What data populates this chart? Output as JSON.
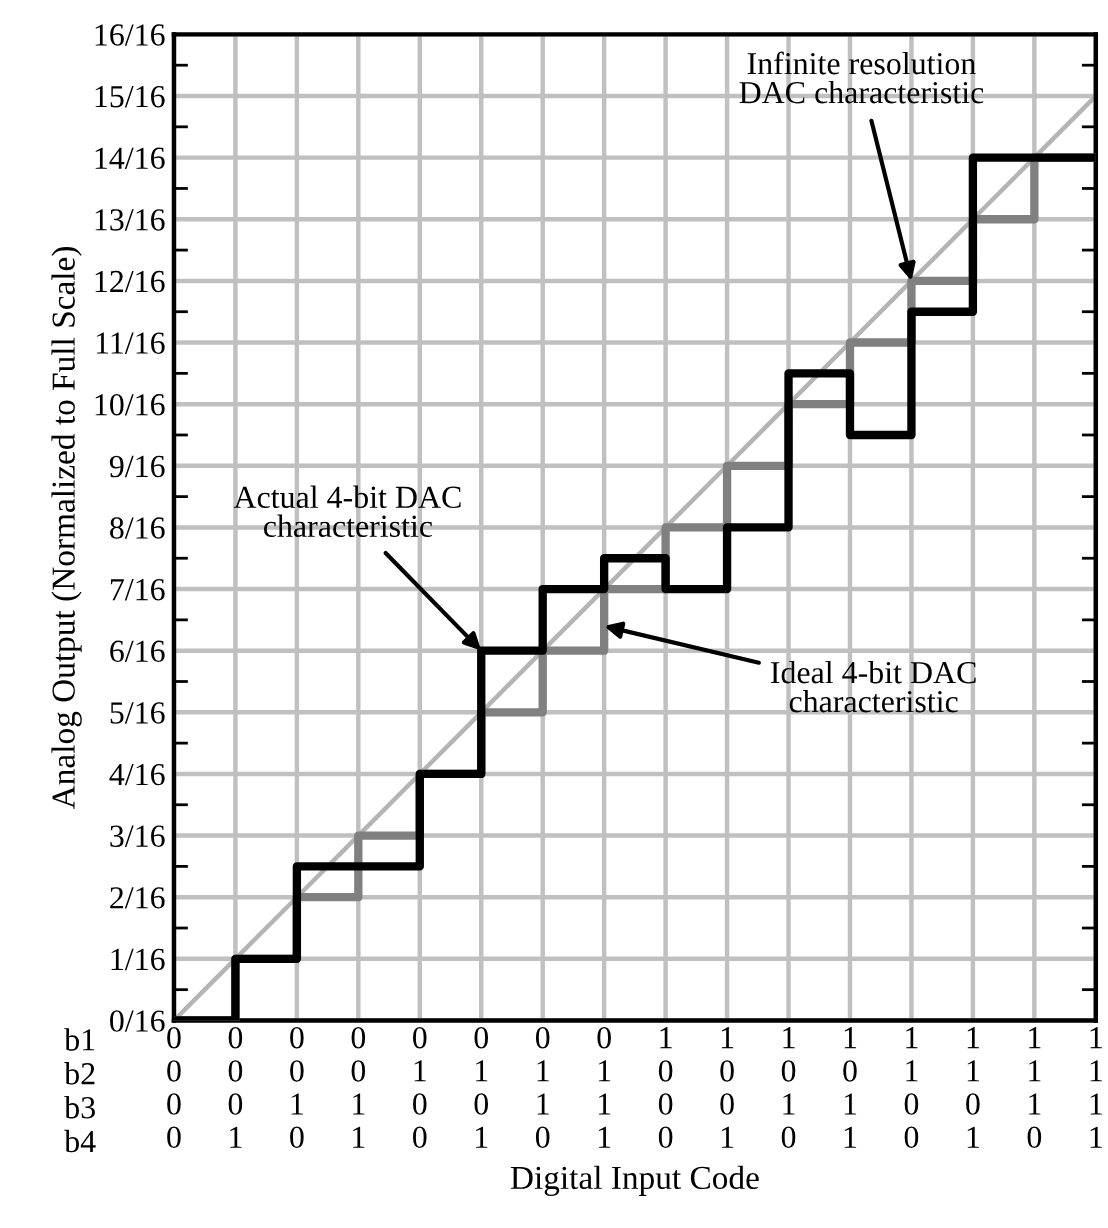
{
  "chart_data": {
    "type": "step",
    "xlabel": "Digital Input Code",
    "ylabel": "Analog Output (Normalized to Full Scale)",
    "categories": [
      "0\n0\n0\n0",
      "0\n0\n0\n1",
      "0\n0\n1\n0",
      "0\n0\n1\n1",
      "0\n1\n0\n0",
      "0\n1\n0\n1",
      "0\n1\n1\n0",
      "0\n1\n1\n1",
      "1\n0\n0\n0",
      "1\n0\n0\n1",
      "1\n0\n1\n0",
      "1\n0\n1\n1",
      "1\n1\n0\n0",
      "1\n1\n0\n1",
      "1\n1\n1\n0",
      "1\n1\n1\n1"
    ],
    "series": [
      {
        "type": "line",
        "color": "#b4b4b4",
        "values": [
          0,
          0.0625,
          0.125,
          0.1875,
          0.25,
          0.3125,
          0.375,
          0.4375,
          0.5,
          0.5625,
          0.625,
          0.6875,
          0.75,
          0.8125,
          0.875,
          0.9375
        ]
      },
      {
        "color": "#808080",
        "values": [
          0,
          0.0625,
          0.125,
          0.1875,
          0.25,
          0.3125,
          0.375,
          0.4375,
          0.5,
          0.5625,
          0.625,
          0.6875,
          0.75,
          0.8125,
          0.875,
          0.875
        ]
      },
      {
        "color": "#000000",
        "values": [
          0,
          0.0625,
          0.15625,
          0.15625,
          0.25,
          0.375,
          0.4375,
          0.46875,
          0.4375,
          0.5,
          0.65625,
          0.59375,
          0.71875,
          0.875,
          0.875,
          0.875
        ]
      }
    ],
    "ylim": [
      0,
      1
    ],
    "yticks": [
      {
        "value": 0,
        "label": "0/16"
      },
      {
        "value": 0.03125,
        "label": null
      },
      {
        "value": 0.0625,
        "label": "1/16"
      },
      {
        "value": 0.09375,
        "label": null
      },
      {
        "value": 0.125,
        "label": "2/16"
      },
      {
        "value": 0.15625,
        "label": null
      },
      {
        "value": 0.1875,
        "label": "3/16"
      },
      {
        "value": 0.21875,
        "label": null
      },
      {
        "value": 0.25,
        "label": "4/16"
      },
      {
        "value": 0.28125,
        "label": null
      },
      {
        "value": 0.3125,
        "label": "5/16"
      },
      {
        "value": 0.34375,
        "label": null
      },
      {
        "value": 0.375,
        "label": "6/16"
      },
      {
        "value": 0.40625,
        "label": null
      },
      {
        "value": 0.4375,
        "label": "7/16"
      },
      {
        "value": 0.46875,
        "label": null
      },
      {
        "value": 0.5,
        "label": "8/16"
      },
      {
        "value": 0.53125,
        "label": null
      },
      {
        "value": 0.5625,
        "label": "9/16"
      },
      {
        "value": 0.59375,
        "label": null
      },
      {
        "value": 0.625,
        "label": "10/16"
      },
      {
        "value": 0.65625,
        "label": null
      },
      {
        "value": 0.6875,
        "label": "11/16"
      },
      {
        "value": 0.71875,
        "label": null
      },
      {
        "value": 0.75,
        "label": "12/16"
      },
      {
        "value": 0.78125,
        "label": null
      },
      {
        "value": 0.8125,
        "label": "13/16"
      },
      {
        "value": 0.84375,
        "label": null
      },
      {
        "value": 0.875,
        "label": "14/16"
      },
      {
        "value": 0.90625,
        "label": null
      },
      {
        "value": 0.9375,
        "label": "15/16"
      },
      {
        "value": 0.96875,
        "label": null
      },
      {
        "value": 1,
        "label": "16/16"
      }
    ],
    "grid": true,
    "annotations": [
      {
        "text": "Infinite resolution\nDAC characteristic",
        "x": "1\n1\n0\n0",
        "y": 0.75
      },
      {
        "text": "Actual 4-bit DAC\ncharacteristic",
        "x": "0\n1\n0\n1",
        "y": 0.375
      },
      {
        "text": "Ideal 4-bit DAC\ncharacteristic",
        "x": "0\n1\n1\n1",
        "y": 0.4
      },
      "b1",
      "b2",
      "b3",
      "b4"
    ]
  }
}
